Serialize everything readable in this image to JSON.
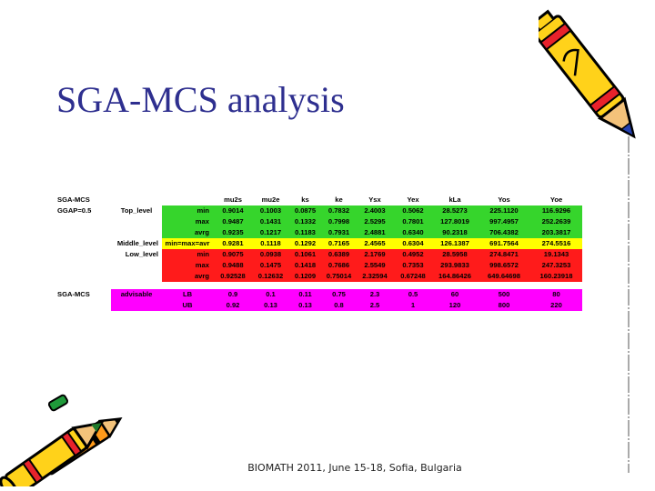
{
  "title": "SGA-MCS analysis",
  "footer": "BIOMATH 2011, June 15-18, Sofia, Bulgaria",
  "table": {
    "header": [
      "SGA-MCS",
      "",
      "",
      "mu2s",
      "mu2e",
      "ks",
      "ke",
      "Ysx",
      "Yex",
      "kLa",
      "Yos",
      "Yoe"
    ],
    "rows": [
      [
        "GGAP=0.5",
        "Top_level",
        "min",
        "0.9014",
        "0.1003",
        "0.0875",
        "0.7832",
        "2.4003",
        "0.5062",
        "28.5273",
        "225.1120",
        "116.9296"
      ],
      [
        "",
        "",
        "max",
        "0.9487",
        "0.1431",
        "0.1332",
        "0.7998",
        "2.5295",
        "0.7801",
        "127.8019",
        "997.4957",
        "252.2639"
      ],
      [
        "",
        "",
        "avrg",
        "0.9235",
        "0.1217",
        "0.1183",
        "0.7931",
        "2.4881",
        "0.6340",
        "90.2318",
        "706.4382",
        "203.3817"
      ],
      [
        "",
        "Middle_level",
        "min=max=avr",
        "0.9281",
        "0.1118",
        "0.1292",
        "0.7165",
        "2.4565",
        "0.6304",
        "126.1387",
        "691.7564",
        "274.5516"
      ],
      [
        "",
        "Low_level",
        "min",
        "0.9075",
        "0.0938",
        "0.1061",
        "0.6389",
        "2.1769",
        "0.4952",
        "28.5958",
        "274.8471",
        "19.1343"
      ],
      [
        "",
        "",
        "max",
        "0.9488",
        "0.1475",
        "0.1418",
        "0.7686",
        "2.5549",
        "0.7353",
        "293.9833",
        "998.6572",
        "247.3253"
      ],
      [
        "",
        "",
        "avrg",
        "0.92528",
        "0.12632",
        "0.1209",
        "0.75014",
        "2.32594",
        "0.67248",
        "164.86426",
        "649.64698",
        "160.23918"
      ],
      [
        "SGA-MCS",
        "advisable",
        "LB",
        "0.9",
        "0.1",
        "0.11",
        "0.75",
        "2.3",
        "0.5",
        "60",
        "500",
        "80"
      ],
      [
        "",
        "",
        "UB",
        "0.92",
        "0.13",
        "0.13",
        "0.8",
        "2.5",
        "1",
        "120",
        "800",
        "220"
      ]
    ]
  }
}
